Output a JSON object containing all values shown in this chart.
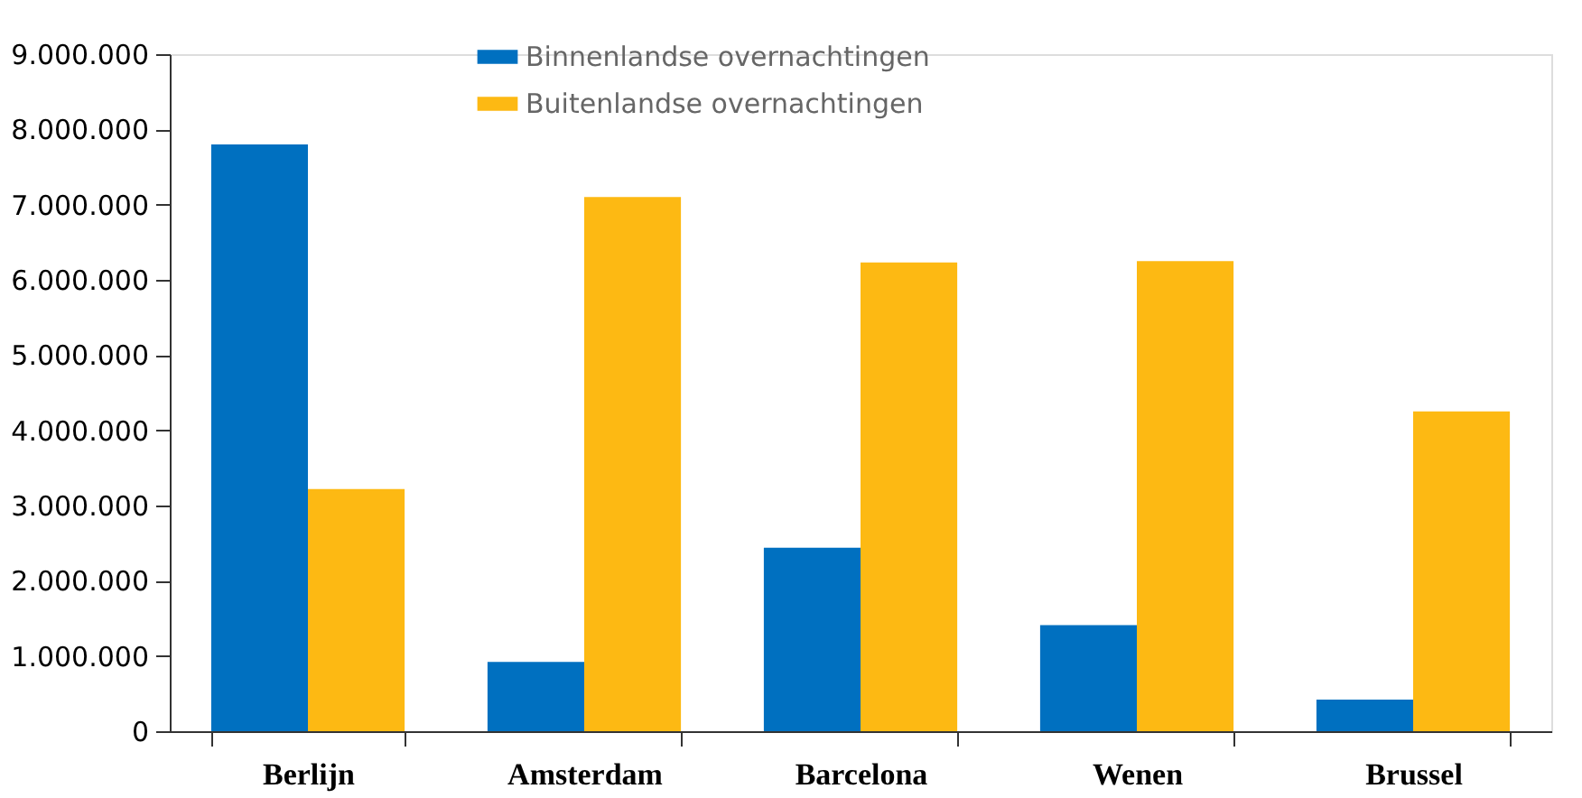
{
  "chart_data": {
    "type": "bar",
    "categories": [
      "Berlijn",
      "Amsterdam",
      "Barcelona",
      "Wenen",
      "Brussel"
    ],
    "series": [
      {
        "name": "Binnenlandse overnachtingen",
        "color": "#0070c0",
        "values": [
          7800000,
          920000,
          2440000,
          1410000,
          420000
        ]
      },
      {
        "name": "Buitenlandse overnachtingen",
        "color": "#fdb913",
        "values": [
          3220000,
          7100000,
          6230000,
          6250000,
          4250000
        ]
      }
    ],
    "ylim": [
      0,
      9000000
    ],
    "yticks": [
      {
        "value": 0,
        "label": "0"
      },
      {
        "value": 1000000,
        "label": "1.000.000"
      },
      {
        "value": 2000000,
        "label": "2.000.000"
      },
      {
        "value": 3000000,
        "label": "3.000.000"
      },
      {
        "value": 4000000,
        "label": "4.000.000"
      },
      {
        "value": 5000000,
        "label": "5.000.000"
      },
      {
        "value": 6000000,
        "label": "6.000.000"
      },
      {
        "value": 7000000,
        "label": "7.000.000"
      },
      {
        "value": 8000000,
        "label": "8.000.000"
      },
      {
        "value": 9000000,
        "label": "9.000.000"
      }
    ],
    "grid": false,
    "legend": "top"
  }
}
